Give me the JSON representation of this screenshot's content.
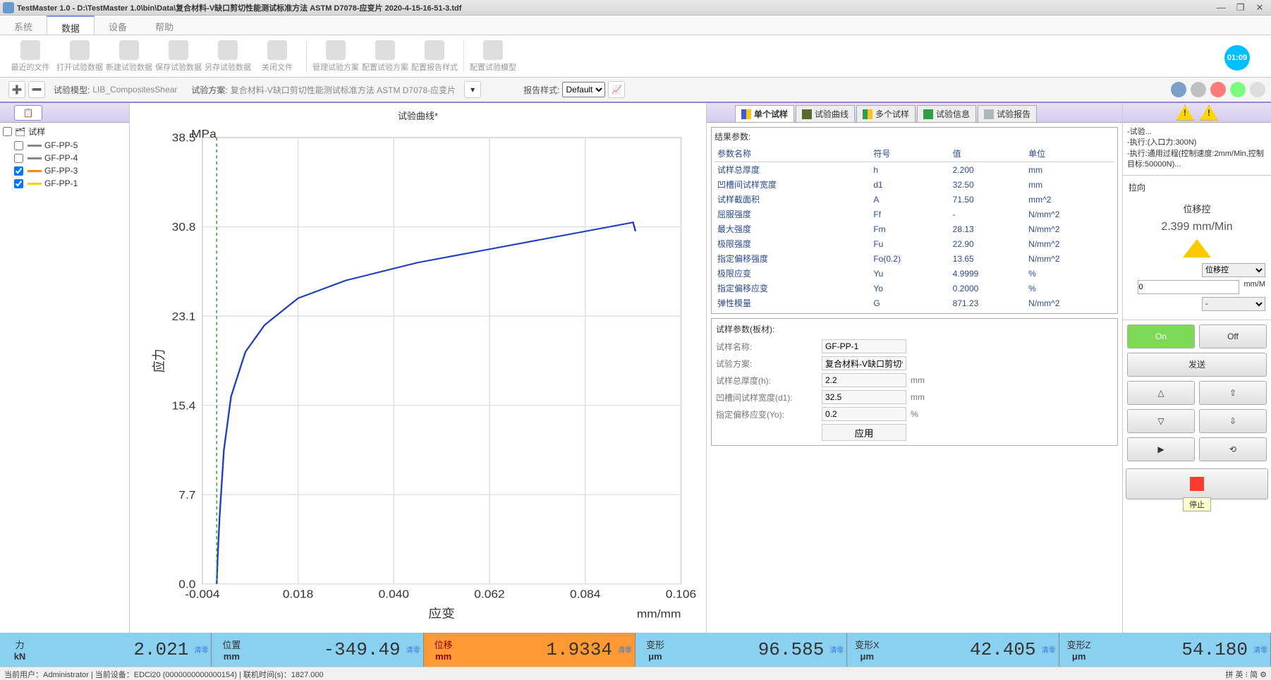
{
  "window": {
    "title": "TestMaster 1.0 - D:\\TestMaster 1.0\\bin\\Data\\复合材料-V缺口剪切性能测试标准方法 ASTM D7078-应变片 2020-4-15-16-51-3.tdf"
  },
  "menu": {
    "system": "系统",
    "data": "数据",
    "device": "设备",
    "help": "帮助"
  },
  "toolbar": {
    "recent": "最近的文件",
    "open": "打开试验数据",
    "new": "新建试验数据",
    "save": "保存试验数据",
    "saveas": "另存试验数据",
    "close": "关闭文件",
    "manage_plan": "管理试验方案",
    "config_plan": "配置试验方案",
    "config_report": "配置报告样式",
    "config_model": "配置试验模型",
    "clock": "01:09"
  },
  "subbar": {
    "model_lbl": "试验模型:",
    "model_val": "LIB_CompositesShear",
    "plan_lbl": "试验方案:",
    "plan_val": "复合材料-V缺口剪切性能测试标准方法 ASTM D7078-应变片",
    "report_lbl": "报告样式:",
    "report_val": "Default"
  },
  "tree": {
    "root": "试样",
    "items": [
      {
        "label": "GF-PP-5",
        "checked": false,
        "color": "#888888"
      },
      {
        "label": "GF-PP-4",
        "checked": false,
        "color": "#888888"
      },
      {
        "label": "GF-PP-3",
        "checked": true,
        "color": "#ff8c00"
      },
      {
        "label": "GF-PP-1",
        "checked": true,
        "color": "#ffcc00"
      }
    ]
  },
  "chart": {
    "title": "试验曲线*",
    "y_label": "应力",
    "y_unit": "MPa",
    "x_label": "应变",
    "x_unit": "mm/mm",
    "y_ticks": [
      "0.0",
      "7.7",
      "15.4",
      "23.1",
      "30.8",
      "38.5"
    ],
    "x_ticks": [
      "-0.004",
      "0.018",
      "0.040",
      "0.062",
      "0.084",
      "0.106"
    ],
    "series_color": "#1f3fbf",
    "curve_points": [
      [
        0.03,
        0.0
      ],
      [
        0.032,
        0.06
      ],
      [
        0.036,
        0.15
      ],
      [
        0.045,
        0.3
      ],
      [
        0.06,
        0.42
      ],
      [
        0.09,
        0.52
      ],
      [
        0.13,
        0.58
      ],
      [
        0.2,
        0.64
      ],
      [
        0.3,
        0.68
      ],
      [
        0.45,
        0.72
      ],
      [
        0.6,
        0.75
      ],
      [
        0.75,
        0.78
      ],
      [
        0.85,
        0.8
      ],
      [
        0.9,
        0.81
      ],
      [
        0.905,
        0.79
      ]
    ],
    "grid_color": "#e0e0e0",
    "bg": "#ffffff"
  },
  "tabs": {
    "single": "单个试样",
    "curve": "试验曲线",
    "multi": "多个试样",
    "info": "试验信息",
    "report": "试验报告"
  },
  "results": {
    "legend": "结果参数:",
    "headers": {
      "name": "参数名称",
      "symbol": "符号",
      "value": "值",
      "unit": "单位"
    },
    "rows": [
      {
        "name": "试样总厚度",
        "symbol": "h",
        "value": "2.200",
        "unit": "mm"
      },
      {
        "name": "凹槽间试样宽度",
        "symbol": "d1",
        "value": "32.50",
        "unit": "mm"
      },
      {
        "name": "试样截面积",
        "symbol": "A",
        "value": "71.50",
        "unit": "mm^2"
      },
      {
        "name": "屈服强度",
        "symbol": "Ff",
        "value": "-",
        "unit": "N/mm^2"
      },
      {
        "name": "最大强度",
        "symbol": "Fm",
        "value": "28.13",
        "unit": "N/mm^2"
      },
      {
        "name": "极限强度",
        "symbol": "Fu",
        "value": "22.90",
        "unit": "N/mm^2"
      },
      {
        "name": "指定偏移强度",
        "symbol": "Fo(0.2)",
        "value": "13.65",
        "unit": "N/mm^2"
      },
      {
        "name": "极限应变",
        "symbol": "Yu",
        "value": "4.9999",
        "unit": "%"
      },
      {
        "name": "指定偏移应变",
        "symbol": "Yo",
        "value": "0.2000",
        "unit": "%"
      },
      {
        "name": "弹性模量",
        "symbol": "G",
        "value": "871.23",
        "unit": "N/mm^2"
      }
    ]
  },
  "sample_params": {
    "legend": "试样参数(板材):",
    "name_lbl": "试样名称:",
    "name_val": "GF-PP-1",
    "plan_lbl": "试验方案:",
    "plan_val": "复合材料-V缺口剪切性能测",
    "thick_lbl": "试样总厚度(h):",
    "thick_val": "2.2",
    "thick_unit": "mm",
    "width_lbl": "凹槽间试样宽度(d1):",
    "width_val": "32.5",
    "width_unit": "mm",
    "offset_lbl": "指定偏移应变(Yo):",
    "offset_val": "0.2",
    "offset_unit": "%",
    "apply": "应用"
  },
  "ctrl": {
    "status_lines": "-试验...\n-执行:(入口力:300N)\n-执行:通用过程(控制速度:2mm/Min,控制目标:50000N)...",
    "dir": "拉向",
    "mode": "位移控",
    "speed": "2.399 mm/Min",
    "sel_mode": "位移控",
    "sel_val": "0",
    "sel_unit": "mm/M",
    "sel_extra": "-",
    "on": "On",
    "off": "Off",
    "send": "发送",
    "stop_tip": "停止"
  },
  "readouts": [
    {
      "name": "力",
      "unit": "kN",
      "val": "2.021",
      "clear": "清零",
      "cls": "blue"
    },
    {
      "name": "位置",
      "unit": "mm",
      "val": "-349.49",
      "clear": "清零",
      "cls": "blue"
    },
    {
      "name": "位移",
      "unit": "mm",
      "val": "1.9334",
      "clear": "清零",
      "cls": "orange"
    },
    {
      "name": "变形",
      "unit": "μm",
      "val": "96.585",
      "clear": "清零",
      "cls": "blue"
    },
    {
      "name": "变形X",
      "unit": "μm",
      "val": "42.405",
      "clear": "清零",
      "cls": "blue"
    },
    {
      "name": "变形Z",
      "unit": "μm",
      "val": "54.180",
      "clear": "清零",
      "cls": "blue"
    }
  ],
  "status": {
    "left": "当前用户：Administrator  |  当前设备：EDCi20 (0000000000000154)  |  联机时间(s)：1827.000",
    "right": "拼 英 ⁝ 简 ⚙"
  }
}
